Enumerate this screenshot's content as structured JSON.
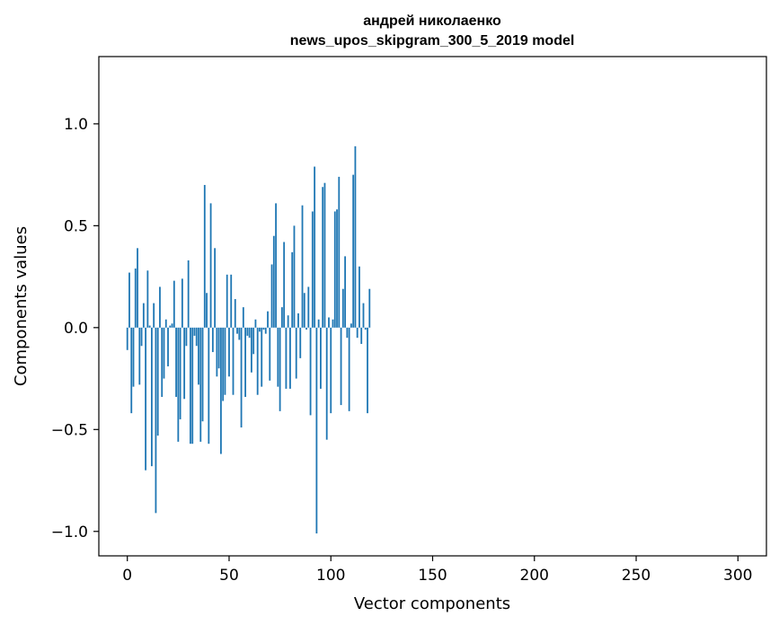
{
  "chart_data": {
    "type": "bar",
    "title": "андрей николаенко",
    "subtitle": "news_upos_skipgram_300_5_2019 model",
    "xlabel": "Vector components",
    "ylabel": "Components values",
    "xlim": [
      -14,
      314
    ],
    "ylim": [
      -1.12,
      1.33
    ],
    "xticks": [
      0,
      50,
      100,
      150,
      200,
      250,
      300
    ],
    "yticks": [
      -1.0,
      -0.5,
      0.0,
      0.5,
      1.0
    ],
    "ytick_labels": [
      "−1.0",
      "−0.5",
      "0.0",
      "0.5",
      "1.0"
    ],
    "grid": false,
    "bar_color": "#1f77b4",
    "series": [
      {
        "values": [
          -0.11,
          0.27,
          -0.42,
          -0.29,
          0.29,
          0.39,
          -0.28,
          -0.09,
          0.12,
          -0.7,
          0.28,
          0.01,
          -0.68,
          0.12,
          -0.91,
          -0.53,
          0.2,
          -0.34,
          -0.25,
          0.04,
          -0.19,
          0.01,
          0.02,
          0.23,
          -0.34,
          -0.56,
          -0.45,
          0.24,
          -0.35,
          -0.09,
          0.33,
          -0.57,
          -0.57,
          -0.04,
          -0.09,
          -0.28,
          -0.56,
          -0.46,
          0.7,
          0.17,
          -0.57,
          0.61,
          -0.12,
          0.39,
          -0.24,
          -0.2,
          -0.62,
          -0.36,
          -0.33,
          0.26,
          -0.24,
          0.26,
          -0.33,
          0.14,
          -0.03,
          -0.06,
          -0.49,
          0.1,
          -0.34,
          -0.04,
          -0.05,
          -0.22,
          -0.13,
          0.04,
          -0.33,
          -0.02,
          -0.29,
          -0.01,
          -0.03,
          0.08,
          -0.26,
          0.31,
          0.45,
          0.61,
          -0.29,
          -0.41,
          0.1,
          0.42,
          -0.3,
          0.06,
          -0.3,
          0.37,
          0.5,
          -0.25,
          0.07,
          -0.15,
          0.6,
          0.17,
          -0.01,
          0.2,
          -0.43,
          0.57,
          0.79,
          -1.01,
          0.04,
          -0.3,
          0.69,
          0.71,
          -0.55,
          0.05,
          -0.42,
          0.04,
          0.57,
          0.58,
          0.74,
          -0.38,
          0.19,
          0.35,
          -0.05,
          -0.41,
          0.02,
          0.75,
          0.89,
          -0.05,
          0.3,
          -0.08,
          0.12,
          -0.01,
          -0.42,
          0.19
        ]
      }
    ]
  }
}
